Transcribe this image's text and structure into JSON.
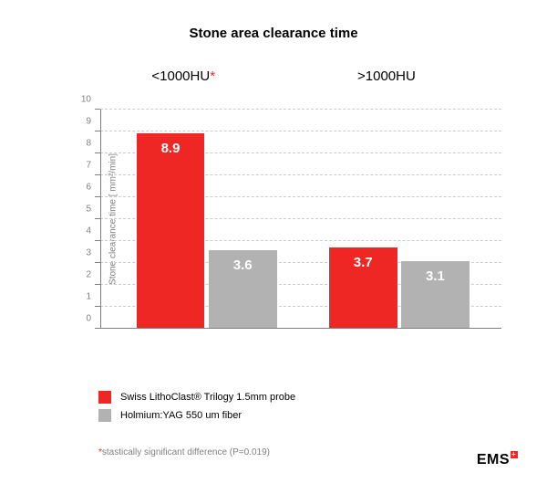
{
  "title": "Stone area clearance time",
  "chart": {
    "type": "bar",
    "y_axis": {
      "title": "Stone clearance time [ mm²/min]",
      "min": 0,
      "max": 10,
      "ticks": [
        0,
        1,
        2,
        3,
        4,
        5,
        6,
        7,
        8,
        9,
        10
      ],
      "title_fontsize": 10,
      "tick_fontsize": 10,
      "axis_color": "#808080",
      "grid_color": "#cccccc",
      "grid_dashed": true
    },
    "groups": [
      {
        "label": "<1000HU",
        "star": true
      },
      {
        "label": ">1000HU",
        "star": false
      }
    ],
    "series": [
      {
        "name": "Swiss LithoClast® Trilogy 1.5mm probe",
        "color": "#ee2724"
      },
      {
        "name": "Holmium:YAG 550 um fiber",
        "color": "#b2b2b2"
      }
    ],
    "bars": [
      {
        "group": 0,
        "series": 0,
        "value": 8.9,
        "label": "8.9",
        "left_pct": 9,
        "width_pct": 17
      },
      {
        "group": 0,
        "series": 1,
        "value": 3.6,
        "label": "3.6",
        "left_pct": 27,
        "width_pct": 17
      },
      {
        "group": 1,
        "series": 0,
        "value": 3.7,
        "label": "3.7",
        "left_pct": 57,
        "width_pct": 17
      },
      {
        "group": 1,
        "series": 1,
        "value": 3.1,
        "label": "3.1",
        "left_pct": 75,
        "width_pct": 17
      }
    ],
    "group_label_positions_pct": [
      18,
      65
    ],
    "bar_label_color": "#ffffff",
    "bar_label_fontsize": 15
  },
  "legend": {
    "items": [
      {
        "swatch": "#ee2724",
        "text": "Swiss LithoClast® Trilogy 1.5mm probe"
      },
      {
        "swatch": "#b2b2b2",
        "text": "Holmium:YAG 550 um fiber"
      }
    ],
    "fontsize": 11
  },
  "footnote": {
    "star_color": "#ee2724",
    "text": "stastically significant difference (P=0.019)"
  },
  "logo": {
    "text": "EMS"
  },
  "colors": {
    "background": "#ffffff",
    "text": "#000000",
    "muted": "#808080"
  }
}
